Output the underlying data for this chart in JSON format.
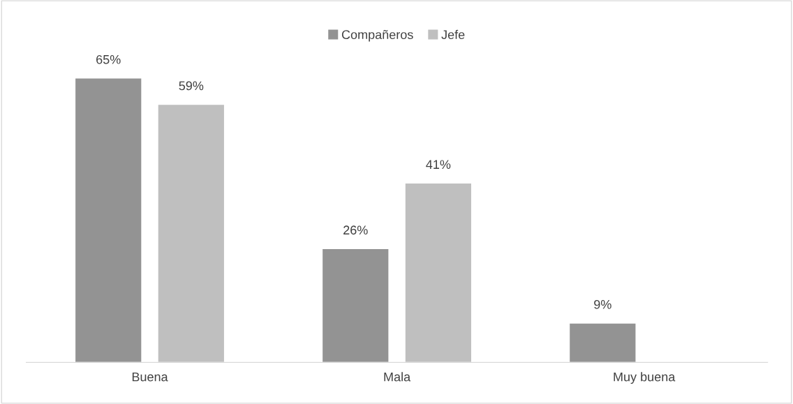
{
  "chart_data": {
    "type": "bar",
    "categories": [
      "Buena",
      "Mala",
      "Muy buena"
    ],
    "series": [
      {
        "name": "Compañeros",
        "color": "#939393",
        "values": [
          65,
          26,
          9
        ],
        "value_labels": [
          "65%",
          "26%",
          "9%"
        ]
      },
      {
        "name": "Jefe",
        "color": "#bfbfbf",
        "values": [
          59,
          41,
          null
        ],
        "value_labels": [
          "59%",
          "41%",
          null
        ]
      }
    ],
    "legend": "top",
    "grid": false
  }
}
